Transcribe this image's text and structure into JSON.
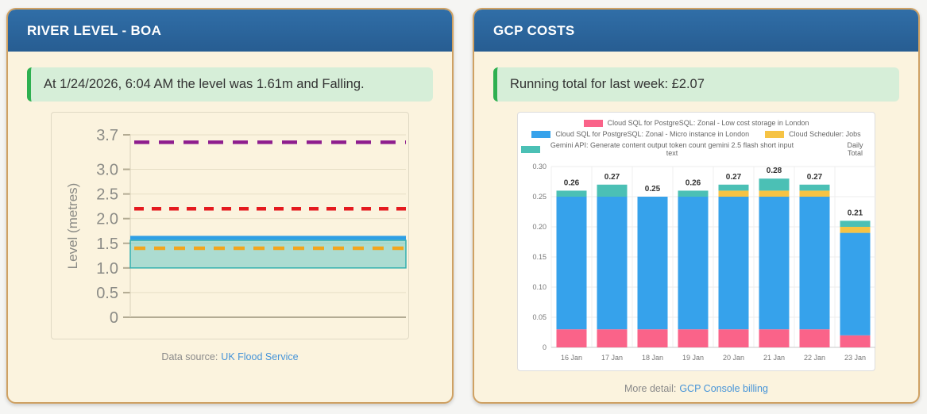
{
  "river": {
    "title": "RIVER LEVEL - BOA",
    "status": "At 1/24/2026, 6:04 AM the level was 1.61m and Falling.",
    "caption": {
      "prefix": "Data source:",
      "link": "UK Flood Service"
    }
  },
  "gcp": {
    "title": "GCP COSTS",
    "status": "Running total for last week: £2.07",
    "caption": {
      "prefix": "More detail:",
      "link": "GCP Console billing"
    }
  },
  "colors": {
    "header_blue": "#2b669e",
    "card_cream": "#fbf3de",
    "card_border_tan": "#cfa163",
    "alert_green_bg": "#d6eed8",
    "alert_green_border": "#2eb050",
    "link_blue": "#4694d8"
  },
  "chart_data": [
    {
      "type": "line",
      "title": "",
      "xlabel": "",
      "ylabel": "Level (metres)",
      "ylim": [
        0,
        3.7
      ],
      "yticks": [
        "3.7",
        "3.0",
        "2.5",
        "2.0",
        "1.5",
        "1.0",
        "0.5",
        "0"
      ],
      "grid": true,
      "current_level": {
        "value": 1.61,
        "color": "#2f9fe5"
      },
      "typical_band": {
        "low": 1.0,
        "high": 1.56,
        "fill": "#4bc0c0",
        "opacity": 0.45,
        "stroke": "#35b0b0"
      },
      "reference_lines": [
        {
          "value": 3.55,
          "color": "#8e1d8e",
          "dash": "19 12"
        },
        {
          "value": 2.2,
          "color": "#e41a1f",
          "dash": "12 10"
        },
        {
          "value": 1.4,
          "color": "#f2a51d",
          "dash": "14 11"
        }
      ]
    },
    {
      "type": "bar",
      "stacked": true,
      "title": "",
      "xlabel": "",
      "ylabel": "",
      "ylim": [
        0,
        0.3
      ],
      "yticks": [
        "0.30",
        "0.25",
        "0.20",
        "0.15",
        "0.10",
        "0.05",
        "0"
      ],
      "grid": true,
      "legend_position": "top",
      "categories": [
        "16 Jan",
        "17 Jan",
        "18 Jan",
        "19 Jan",
        "20 Jan",
        "21 Jan",
        "22 Jan",
        "23 Jan"
      ],
      "series": [
        {
          "name": "Cloud SQL for PostgreSQL: Zonal - Low cost storage in London",
          "color": "#fa6389",
          "values": [
            0.03,
            0.03,
            0.03,
            0.03,
            0.03,
            0.03,
            0.03,
            0.02
          ]
        },
        {
          "name": "Cloud SQL for PostgreSQL: Zonal - Micro instance in London",
          "color": "#36a2eb",
          "values": [
            0.22,
            0.22,
            0.22,
            0.22,
            0.22,
            0.22,
            0.22,
            0.17
          ]
        },
        {
          "name": "Cloud Scheduler: Jobs",
          "color": "#f6c344",
          "values": [
            0,
            0,
            0,
            0,
            0.01,
            0.01,
            0.01,
            0.01
          ]
        },
        {
          "name": "Gemini API: Generate content output token count gemini 2.5 flash short input text",
          "color": "#4bc0b5",
          "values": [
            0.01,
            0.02,
            0,
            0.01,
            0.01,
            0.02,
            0.01,
            0.01
          ]
        }
      ],
      "totals": {
        "name": "Daily Total",
        "values": [
          "0.26",
          "0.27",
          "0.25",
          "0.26",
          "0.27",
          "0.28",
          "0.27",
          "0.21"
        ]
      }
    }
  ]
}
